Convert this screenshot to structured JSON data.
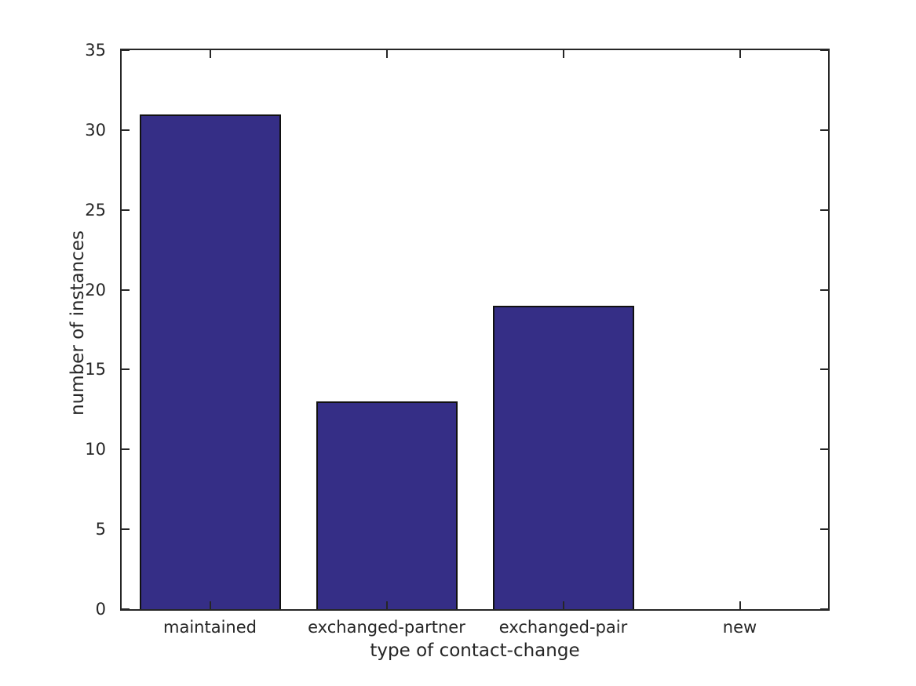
{
  "figure": {
    "background": "#ffffff"
  },
  "chart_data": {
    "type": "bar",
    "categories": [
      "maintained",
      "exchanged-partner",
      "exchanged-pair",
      "new"
    ],
    "values": [
      31,
      13,
      19,
      0
    ],
    "title": "",
    "xlabel": "type of contact-change",
    "ylabel": "number of instances",
    "ylim": [
      0,
      35
    ],
    "yticks": [
      0,
      5,
      10,
      15,
      20,
      25,
      30,
      35
    ],
    "grid": false,
    "legend": false,
    "box": true,
    "tick_direction": "in",
    "bar_color": "#352e86",
    "bar_edge_color": "#111111",
    "axis_color": "#262626",
    "text_color": "#262626",
    "bar_width_fraction": 0.8
  }
}
